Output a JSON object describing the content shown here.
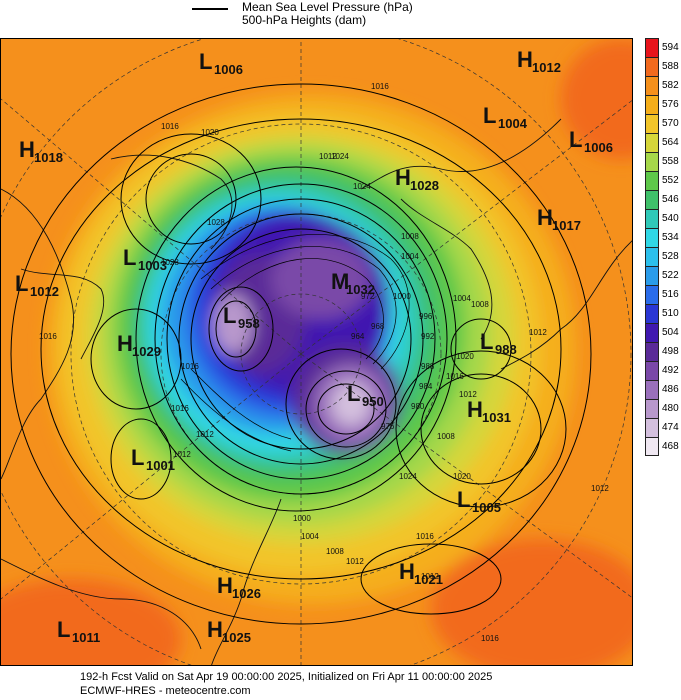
{
  "legend": {
    "line1": "Mean Sea Level Pressure (hPa)",
    "line2": "500-hPa Heights (dam)"
  },
  "colorbar": {
    "labels": [
      "594",
      "588",
      "582",
      "576",
      "570",
      "564",
      "558",
      "552",
      "546",
      "540",
      "534",
      "528",
      "522",
      "516",
      "510",
      "504",
      "498",
      "492",
      "486",
      "480",
      "474",
      "468"
    ],
    "colors": [
      "#e8141c",
      "#f26a1e",
      "#f5901c",
      "#f5ae1a",
      "#f2c52a",
      "#d6d63a",
      "#a6d84a",
      "#5ec84a",
      "#3fc06a",
      "#2fc9b8",
      "#30d8e6",
      "#2cc0ec",
      "#2a9cea",
      "#2a6cea",
      "#2a36d4",
      "#4018b0",
      "#5a2a98",
      "#7a48a8",
      "#9a70bc",
      "#b898cc",
      "#d4c0de",
      "#f0e8f2"
    ]
  },
  "map": {
    "centers": [
      {
        "type": "L",
        "value": "1006"
      },
      {
        "type": "H",
        "value": "1012"
      },
      {
        "type": "L",
        "value": "1004"
      },
      {
        "type": "L",
        "value": "1006"
      },
      {
        "type": "H",
        "value": "1018"
      },
      {
        "type": "H",
        "value": "1028"
      },
      {
        "type": "H",
        "value": "1017"
      },
      {
        "type": "L",
        "value": "1003"
      },
      {
        "type": "L",
        "value": "1012"
      },
      {
        "type": "H",
        "value": "1029"
      },
      {
        "type": "L",
        "value": "988"
      },
      {
        "type": "L",
        "value": "958"
      },
      {
        "type": "M",
        "value": "1032"
      },
      {
        "type": "L",
        "value": "950"
      },
      {
        "type": "H",
        "value": "1031"
      },
      {
        "type": "L",
        "value": "1001"
      },
      {
        "type": "L",
        "value": "1005"
      },
      {
        "type": "H",
        "value": "1021"
      },
      {
        "type": "H",
        "value": "1026"
      },
      {
        "type": "H",
        "value": "1025"
      },
      {
        "type": "L",
        "value": "1011"
      }
    ],
    "isobar_labels": [
      "1016",
      "1016",
      "1020",
      "1024",
      "1028",
      "1012",
      "1024",
      "1008",
      "1004",
      "1000",
      "996",
      "992",
      "988",
      "984",
      "980",
      "976",
      "972",
      "968",
      "964",
      "1000",
      "1004",
      "1008",
      "1012",
      "1016",
      "1020",
      "1024",
      "1028",
      "1012",
      "1016",
      "1012",
      "1016",
      "1008",
      "1012",
      "1016",
      "1020",
      "1012",
      "1004",
      "1008",
      "1012",
      "1016",
      "1016",
      "1012"
    ]
  },
  "footer": {
    "line1": "192-h Fcst Valid on Sat Apr 19 00:00:00 2025, Initialized on Fri Apr 11 00:00:00 2025",
    "line2": "ECMWF-HRES  - meteocentre.com"
  }
}
